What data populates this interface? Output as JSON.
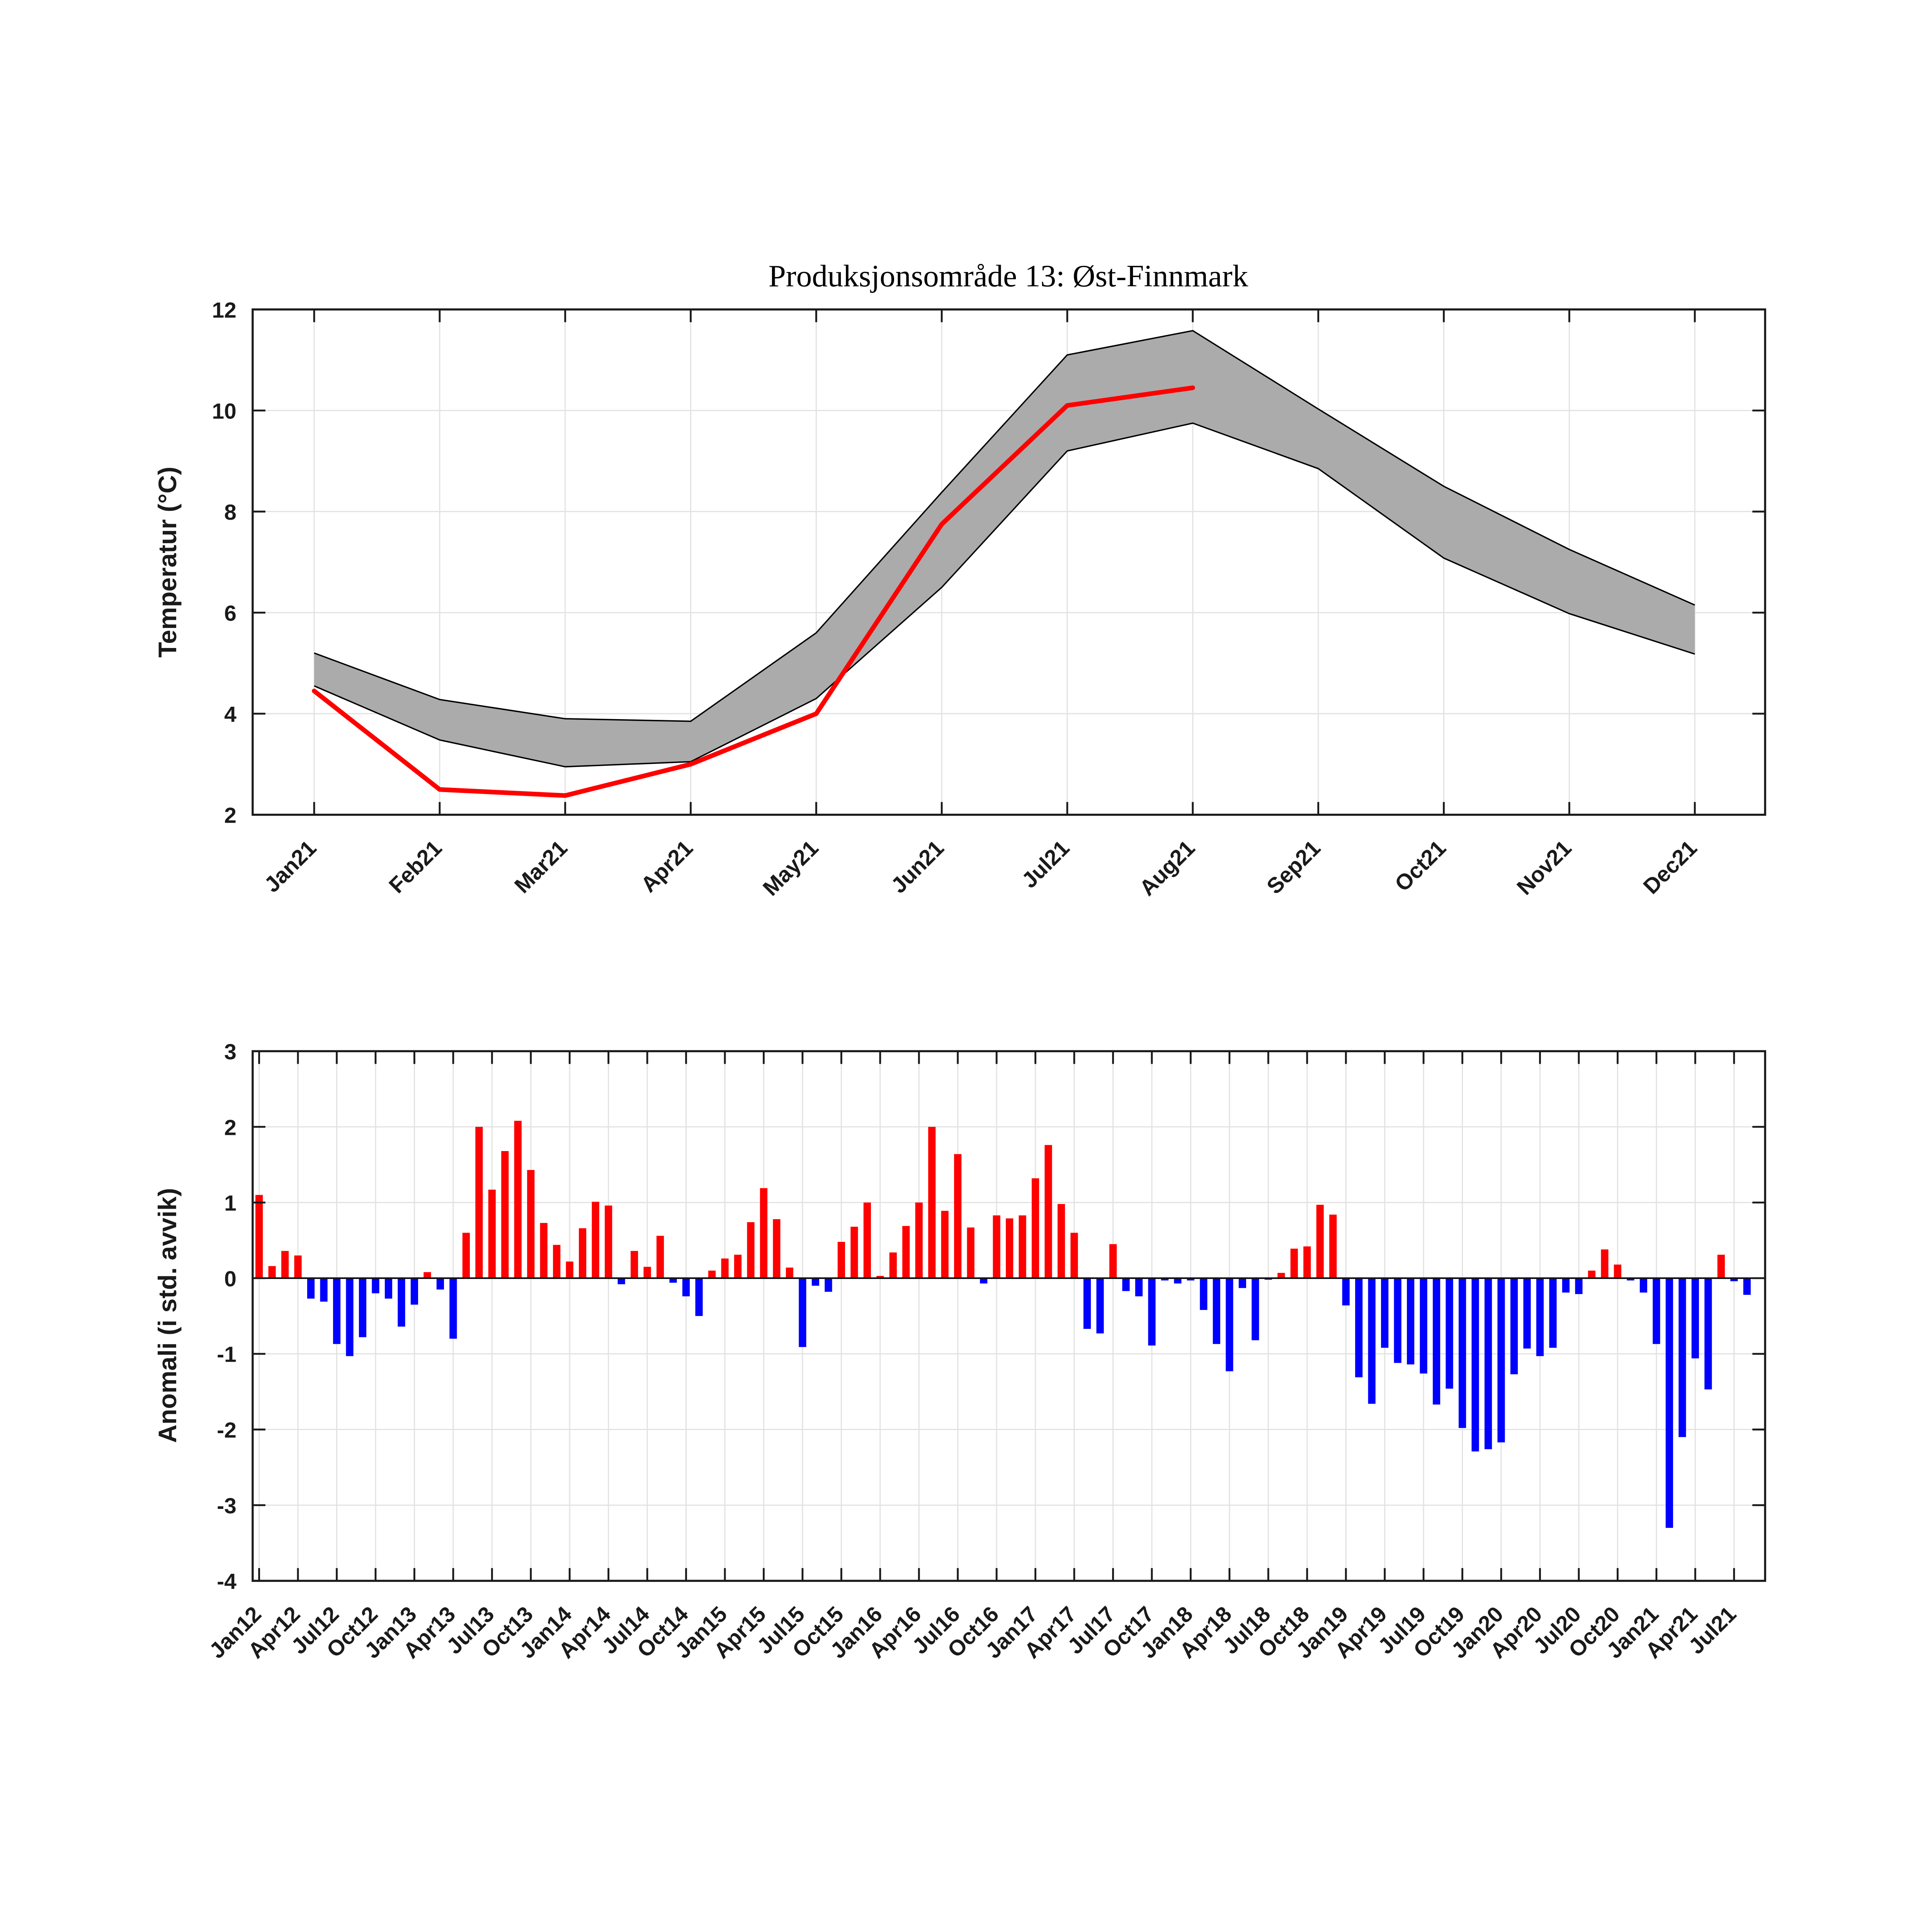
{
  "figure": {
    "background": "#ffffff",
    "axis_color": "#1a1a1a",
    "grid_color": "#e2e2e2"
  },
  "chart_data": [
    {
      "type": "line",
      "panel": "top",
      "title": "Produksjonsområde 13: Øst-Finnmark",
      "ylabel": "Temperatur (°C)",
      "categories": [
        "Jan21",
        "Feb21",
        "Mar21",
        "Apr21",
        "May21",
        "Jun21",
        "Jul21",
        "Aug21",
        "Sep21",
        "Oct21",
        "Nov21",
        "Dec21"
      ],
      "ylim": [
        2,
        12
      ],
      "yticks": [
        2,
        4,
        6,
        8,
        10,
        12
      ],
      "grid": true,
      "legend": "none",
      "band_color": "#ababab",
      "band_edge_color": "#000000",
      "series": [
        {
          "name": "klimatologi-ovre",
          "role": "band-upper",
          "values": [
            5.2,
            4.28,
            3.9,
            3.85,
            5.6,
            8.38,
            11.1,
            11.58,
            10.03,
            8.5,
            7.25,
            6.15
          ]
        },
        {
          "name": "klimatologi-nedre",
          "role": "band-lower",
          "values": [
            4.55,
            3.48,
            2.95,
            3.05,
            4.3,
            6.5,
            9.2,
            9.75,
            8.85,
            7.08,
            5.98,
            5.18
          ]
        },
        {
          "name": "temperatur-2021",
          "role": "line",
          "color": "#ff0000",
          "values": [
            4.45,
            2.5,
            2.38,
            3.0,
            4.0,
            7.75,
            10.1,
            10.45
          ]
        }
      ]
    },
    {
      "type": "bar",
      "panel": "bottom",
      "ylabel": "Anomali (i std. avvik)",
      "start_month": "Jan12",
      "end_month": "Aug21",
      "x_tick_labels": [
        "Jan12",
        "Apr12",
        "Jul12",
        "Oct12",
        "Jan13",
        "Apr13",
        "Jul13",
        "Oct13",
        "Jan14",
        "Apr14",
        "Jul14",
        "Oct14",
        "Jan15",
        "Apr15",
        "Jul15",
        "Oct15",
        "Jan16",
        "Apr16",
        "Jul16",
        "Oct16",
        "Jan17",
        "Apr17",
        "Jul17",
        "Oct17",
        "Jan18",
        "Apr18",
        "Jul18",
        "Oct18",
        "Jan19",
        "Apr19",
        "Jul19",
        "Oct19",
        "Jan20",
        "Apr20",
        "Jul20",
        "Oct20",
        "Jan21",
        "Apr21",
        "Jul21"
      ],
      "x_tick_step": 3,
      "ylim": [
        -4,
        3
      ],
      "yticks": [
        -4,
        -3,
        -2,
        -1,
        0,
        1,
        2,
        3
      ],
      "grid": true,
      "positive_color": "#ff0000",
      "negative_color": "#0000ff",
      "values": [
        1.1,
        0.16,
        0.36,
        0.3,
        -0.27,
        -0.31,
        -0.87,
        -1.03,
        -0.78,
        -0.2,
        -0.27,
        -0.64,
        -0.35,
        0.08,
        -0.15,
        -0.8,
        0.6,
        2.0,
        1.17,
        1.68,
        2.08,
        1.43,
        0.73,
        0.44,
        0.22,
        0.66,
        1.01,
        0.96,
        -0.08,
        0.36,
        0.15,
        0.56,
        -0.06,
        -0.24,
        -0.5,
        0.1,
        0.26,
        0.31,
        0.74,
        1.19,
        0.78,
        0.14,
        -0.91,
        -0.1,
        -0.18,
        0.48,
        0.68,
        1.0,
        0.03,
        0.34,
        0.69,
        1.0,
        2.0,
        0.89,
        1.64,
        0.67,
        -0.07,
        0.83,
        0.79,
        0.83,
        1.32,
        1.76,
        0.98,
        0.6,
        -0.67,
        -0.73,
        0.45,
        -0.17,
        -0.24,
        -0.89,
        -0.03,
        -0.07,
        -0.03,
        -0.42,
        -0.87,
        -1.23,
        -0.13,
        -0.82,
        -0.02,
        0.07,
        0.39,
        0.42,
        0.97,
        0.84,
        -0.36,
        -1.31,
        -1.66,
        -0.92,
        -1.12,
        -1.14,
        -1.26,
        -1.67,
        -1.46,
        -1.98,
        -2.29,
        -2.26,
        -2.17,
        -1.27,
        -0.93,
        -1.03,
        -0.92,
        -0.19,
        -0.21,
        0.1,
        0.38,
        0.18,
        -0.03,
        -0.19,
        -0.87,
        -3.3,
        -2.1,
        -1.06,
        -1.47,
        0.31,
        -0.04,
        -0.22
      ]
    }
  ]
}
